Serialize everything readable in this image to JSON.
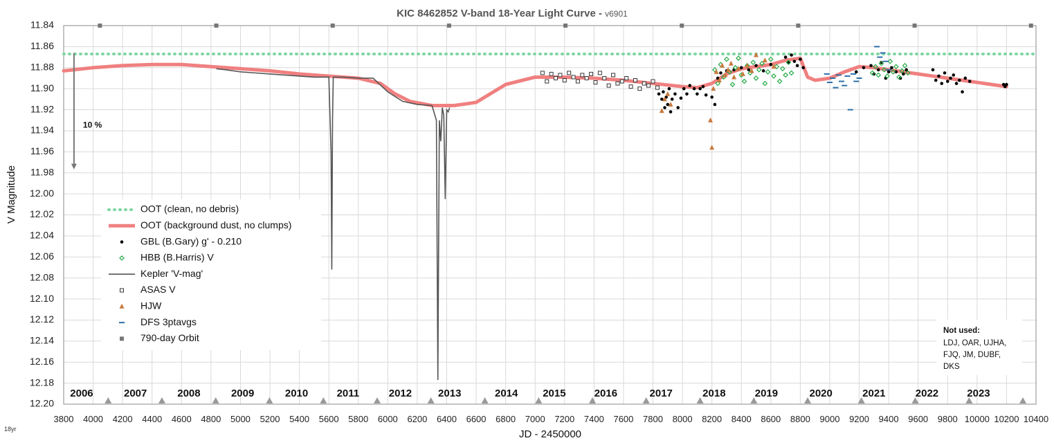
{
  "chart_data": {
    "type": "scatter",
    "title": "KIC 8462852 V-band 18-Year Light Curve - ",
    "version": "v6901",
    "xlabel": "JD - 2450000",
    "ylabel": "V Magnitude",
    "corner_label": "18yr",
    "xlim": [
      3800,
      10400
    ],
    "ylim": [
      11.84,
      12.2
    ],
    "y_inverted": true,
    "grid": true,
    "x_ticks": [
      3800,
      4000,
      4200,
      4400,
      4600,
      4800,
      5000,
      5200,
      5400,
      5600,
      5800,
      6000,
      6200,
      6400,
      6600,
      6800,
      7000,
      7200,
      7400,
      7600,
      7800,
      8000,
      8200,
      8400,
      8600,
      8800,
      9000,
      9200,
      9400,
      9600,
      9800,
      10000,
      10200,
      10400
    ],
    "y_ticks": [
      11.84,
      11.86,
      11.88,
      11.9,
      11.92,
      11.94,
      11.96,
      11.98,
      12.0,
      12.02,
      12.04,
      12.06,
      12.08,
      12.1,
      12.12,
      12.14,
      12.16,
      12.18,
      12.2
    ],
    "years": [
      {
        "label": "2006",
        "x": 3922
      },
      {
        "label": "2007",
        "x": 4287
      },
      {
        "label": "2008",
        "x": 4650
      },
      {
        "label": "2009",
        "x": 5015
      },
      {
        "label": "2010",
        "x": 5381
      },
      {
        "label": "2011",
        "x": 5730
      },
      {
        "label": "2012",
        "x": 6085
      },
      {
        "label": "2013",
        "x": 6420
      },
      {
        "label": "2014",
        "x": 6805
      },
      {
        "label": "2015",
        "x": 7130
      },
      {
        "label": "2016",
        "x": 7480
      },
      {
        "label": "2017",
        "x": 7855
      },
      {
        "label": "2018",
        "x": 8215
      },
      {
        "label": "2019",
        "x": 8570
      },
      {
        "label": "2020",
        "x": 8940
      },
      {
        "label": "2021",
        "x": 9300
      },
      {
        "label": "2022",
        "x": 9660
      },
      {
        "label": "2023",
        "x": 10010
      }
    ],
    "year_boundaries": [
      4102,
      4467,
      4832,
      5197,
      5563,
      5928,
      6293,
      6659,
      7024,
      7389,
      7754,
      8120,
      8485,
      8850,
      9215,
      9580,
      9946,
      10311
    ],
    "orbit_markers": [
      4046,
      4836,
      5626,
      6416,
      7206,
      7996,
      8786,
      9576,
      10366
    ],
    "annotation": {
      "text": "10 %",
      "x": 3870,
      "y_from": 11.866,
      "y_to": 11.976
    },
    "series": [
      {
        "name": "OOT (clean, no debris)",
        "style": "dotted",
        "color": "#7fd6a3",
        "x": [
          3800,
          10400
        ],
        "y": [
          11.867,
          11.867
        ]
      },
      {
        "name": "OOT (background dust, no clumps)",
        "style": "thick",
        "color": "#f08080",
        "x": [
          3800,
          4000,
          4200,
          4400,
          4600,
          4800,
          5000,
          5200,
          5400,
          5600,
          5800,
          5950,
          6050,
          6150,
          6300,
          6450,
          6600,
          6800,
          7000,
          7200,
          7400,
          7600,
          7800,
          8000,
          8100,
          8200,
          8300,
          8400,
          8500,
          8600,
          8700,
          8800,
          8850,
          8900,
          9000,
          9100,
          9200,
          9300,
          9400,
          9500,
          9600,
          9700,
          9800,
          9900,
          10000,
          10100,
          10200
        ],
        "y": [
          11.883,
          11.88,
          11.878,
          11.877,
          11.877,
          11.879,
          11.881,
          11.883,
          11.886,
          11.888,
          11.89,
          11.895,
          11.905,
          11.912,
          11.916,
          11.916,
          11.913,
          11.896,
          11.889,
          11.889,
          11.89,
          11.892,
          11.895,
          11.898,
          11.899,
          11.895,
          11.886,
          11.881,
          11.879,
          11.877,
          11.873,
          11.871,
          11.889,
          11.892,
          11.89,
          11.884,
          11.879,
          11.88,
          11.882,
          11.884,
          11.886,
          11.888,
          11.89,
          11.892,
          11.894,
          11.896,
          11.898
        ]
      },
      {
        "name": "GBL (B.Gary) g' - 0.210",
        "style": "dot",
        "color": "#000000",
        "x": [
          7840,
          7860,
          7870,
          7880,
          7890,
          7900,
          7910,
          7920,
          7930,
          7950,
          7970,
          7990,
          8010,
          8030,
          8050,
          8080,
          8100,
          8120,
          8140,
          8160,
          8200,
          8220,
          8240,
          8260,
          8300,
          8350,
          8400,
          8450,
          8500,
          8550,
          8600,
          8700,
          8720,
          8740,
          8760,
          8780,
          8800,
          8820,
          9180,
          9230,
          9280,
          9300,
          9330,
          9350,
          9380,
          9400,
          9420,
          9450,
          9480,
          9500,
          9520,
          9700,
          9720,
          9740,
          9760,
          9780,
          9800,
          9820,
          9840,
          9860,
          9880,
          9900,
          9920,
          9950,
          10180,
          10190,
          10200
        ],
        "y": [
          11.905,
          11.91,
          11.903,
          11.918,
          11.908,
          11.915,
          11.9,
          11.922,
          11.91,
          11.905,
          11.918,
          11.909,
          11.9,
          11.905,
          11.897,
          11.9,
          11.905,
          11.9,
          11.898,
          11.906,
          11.908,
          11.915,
          11.89,
          11.885,
          11.883,
          11.882,
          11.88,
          11.882,
          11.878,
          11.883,
          11.877,
          11.87,
          11.875,
          11.868,
          11.874,
          11.878,
          11.872,
          11.88,
          11.884,
          11.88,
          11.878,
          11.886,
          11.882,
          11.875,
          11.89,
          11.884,
          11.88,
          11.884,
          11.89,
          11.886,
          11.882,
          11.882,
          11.892,
          11.888,
          11.895,
          11.885,
          11.893,
          11.89,
          11.887,
          11.895,
          11.892,
          11.903,
          11.89,
          11.893,
          11.896,
          11.898,
          11.896
        ]
      },
      {
        "name": "HBB (B.Harris) V",
        "style": "diamond",
        "color": "#22aa44",
        "x": [
          8220,
          8240,
          8260,
          8280,
          8300,
          8320,
          8340,
          8360,
          8380,
          8400,
          8420,
          8440,
          8460,
          8480,
          8500,
          8520,
          8540,
          8560,
          8580,
          8600,
          8620,
          8640,
          8660,
          8680,
          8700,
          8720,
          8740,
          9290,
          9310,
          9330,
          9350,
          9370,
          9390,
          9410,
          9430,
          9450,
          9470,
          9490,
          9510,
          9530
        ],
        "y": [
          11.882,
          11.895,
          11.877,
          11.889,
          11.872,
          11.884,
          11.896,
          11.88,
          11.871,
          11.887,
          11.893,
          11.878,
          11.885,
          11.875,
          11.89,
          11.882,
          11.876,
          11.895,
          11.884,
          11.872,
          11.888,
          11.879,
          11.893,
          11.881,
          11.887,
          11.875,
          11.885,
          11.885,
          11.879,
          11.887,
          11.876,
          11.882,
          11.888,
          11.874,
          11.884,
          11.879,
          11.889,
          11.883,
          11.878,
          11.885
        ]
      },
      {
        "name": "Kepler 'V-mag'",
        "style": "line",
        "color": "#555555",
        "x": [
          4836,
          4900,
          5000,
          5100,
          5200,
          5300,
          5400,
          5500,
          5600,
          5615,
          5620,
          5625,
          5630,
          5700,
          5800,
          5900,
          6000,
          6100,
          6200,
          6300,
          6330,
          6340,
          6350,
          6360,
          6370,
          6380,
          6390,
          6400,
          6410,
          6420
        ],
        "y": [
          11.881,
          11.882,
          11.884,
          11.885,
          11.886,
          11.887,
          11.888,
          11.889,
          11.889,
          11.96,
          12.072,
          11.93,
          11.889,
          11.889,
          11.89,
          11.89,
          11.903,
          11.912,
          11.915,
          11.916,
          11.93,
          12.177,
          11.93,
          11.95,
          11.918,
          11.925,
          12.005,
          11.92,
          11.922,
          11.918
        ]
      },
      {
        "name": "ASAS V",
        "style": "square",
        "color": "#333333",
        "x": [
          7050,
          7080,
          7110,
          7140,
          7170,
          7200,
          7230,
          7260,
          7290,
          7320,
          7350,
          7380,
          7410,
          7440,
          7470,
          7500,
          7530,
          7560,
          7590,
          7620,
          7650,
          7680,
          7710,
          7740,
          7770,
          7800,
          7830
        ],
        "y": [
          11.885,
          11.893,
          11.886,
          11.89,
          11.887,
          11.892,
          11.885,
          11.889,
          11.893,
          11.887,
          11.89,
          11.886,
          11.894,
          11.885,
          11.89,
          11.897,
          11.887,
          11.895,
          11.893,
          11.89,
          11.898,
          11.892,
          11.9,
          11.895,
          11.897,
          11.893,
          11.899
        ]
      },
      {
        "name": "HJW",
        "style": "triangle",
        "color": "#c87a3e",
        "x": [
          7860,
          7880,
          7900,
          7920,
          8190,
          8200,
          8210,
          8230,
          8250,
          8270,
          8290,
          8310,
          8330,
          8350,
          8380,
          8410,
          8440,
          8470,
          8500,
          8560,
          8620
        ],
        "y": [
          11.921,
          11.91,
          11.905,
          11.915,
          11.93,
          11.956,
          11.9,
          11.884,
          11.892,
          11.878,
          11.887,
          11.882,
          11.876,
          11.889,
          11.881,
          11.886,
          11.878,
          11.883,
          11.868,
          11.873,
          11.879
        ]
      },
      {
        "name": "DFS 3ptavgs",
        "style": "dash",
        "color": "#2b6ea8",
        "x": [
          8980,
          9000,
          9020,
          9040,
          9060,
          9080,
          9100,
          9120,
          9140,
          9160,
          9180,
          9200,
          9320,
          9340,
          9360,
          9380,
          9400
        ],
        "y": [
          11.886,
          11.894,
          11.89,
          11.899,
          11.887,
          11.893,
          11.897,
          11.888,
          11.92,
          11.886,
          11.893,
          11.89,
          11.86,
          11.87,
          11.866,
          11.874,
          11.882
        ]
      },
      {
        "name": "790-day Orbit",
        "style": "orbit",
        "color": "#777777",
        "x": [
          4046,
          4836,
          5626,
          6416,
          7206,
          7996,
          8786,
          9576,
          10366
        ],
        "y": [
          11.84,
          11.84,
          11.84,
          11.84,
          11.84,
          11.84,
          11.84,
          11.84,
          11.84
        ]
      }
    ],
    "not_used": {
      "title": "Not used:",
      "lines": [
        "LDJ, OAR, UJHA,",
        "FJQ, JM, DUBF,",
        "DKS"
      ]
    }
  }
}
